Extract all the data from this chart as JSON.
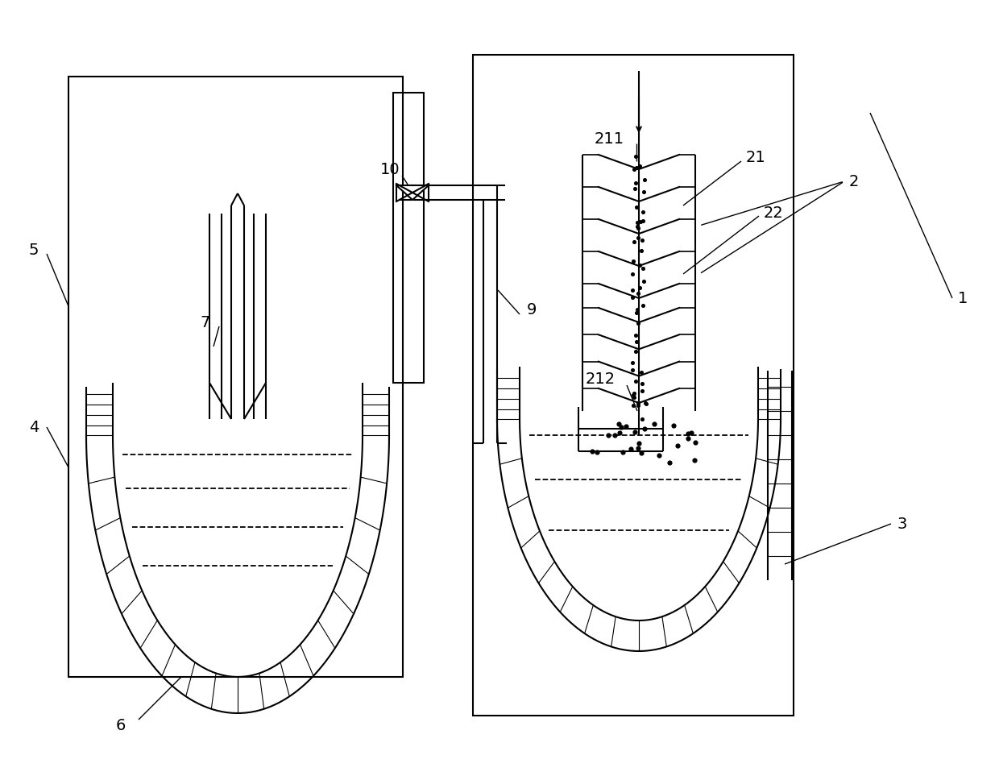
{
  "bg": "#ffffff",
  "lc": "#000000",
  "lw": 1.5,
  "fig_w": 12.4,
  "fig_h": 9.58,
  "dpi": 100
}
